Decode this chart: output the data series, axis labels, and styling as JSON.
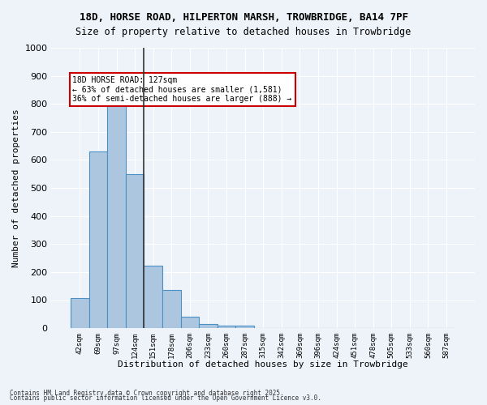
{
  "title_line1": "18D, HORSE ROAD, HILPERTON MARSH, TROWBRIDGE, BA14 7PF",
  "title_line2": "Size of property relative to detached houses in Trowbridge",
  "xlabel": "Distribution of detached houses by size in Trowbridge",
  "ylabel": "Number of detached properties",
  "categories": [
    "42sqm",
    "69sqm",
    "97sqm",
    "124sqm",
    "151sqm",
    "178sqm",
    "206sqm",
    "233sqm",
    "260sqm",
    "287sqm",
    "315sqm",
    "342sqm",
    "369sqm",
    "396sqm",
    "424sqm",
    "451sqm",
    "478sqm",
    "505sqm",
    "533sqm",
    "560sqm",
    "587sqm"
  ],
  "values": [
    108,
    630,
    795,
    548,
    222,
    135,
    42,
    15,
    10,
    10,
    0,
    0,
    0,
    0,
    0,
    0,
    0,
    0,
    0,
    0,
    0
  ],
  "bar_color": "#adc6e0",
  "bar_edge_color": "#4a90c4",
  "ylim": [
    0,
    1000
  ],
  "yticks": [
    0,
    100,
    200,
    300,
    400,
    500,
    600,
    700,
    800,
    900,
    1000
  ],
  "vline_x": 3.5,
  "annotation_text": "18D HORSE ROAD: 127sqm\n← 63% of detached houses are smaller (1,581)\n36% of semi-detached houses are larger (888) →",
  "annotation_box_color": "#ffffff",
  "annotation_box_edge": "#cc0000",
  "footer_line1": "Contains HM Land Registry data © Crown copyright and database right 2025.",
  "footer_line2": "Contains public sector information licensed under the Open Government Licence v3.0.",
  "bg_color": "#eef3fa",
  "plot_bg_color": "#eef3fa",
  "grid_color": "#ffffff",
  "vline_color": "#333333"
}
